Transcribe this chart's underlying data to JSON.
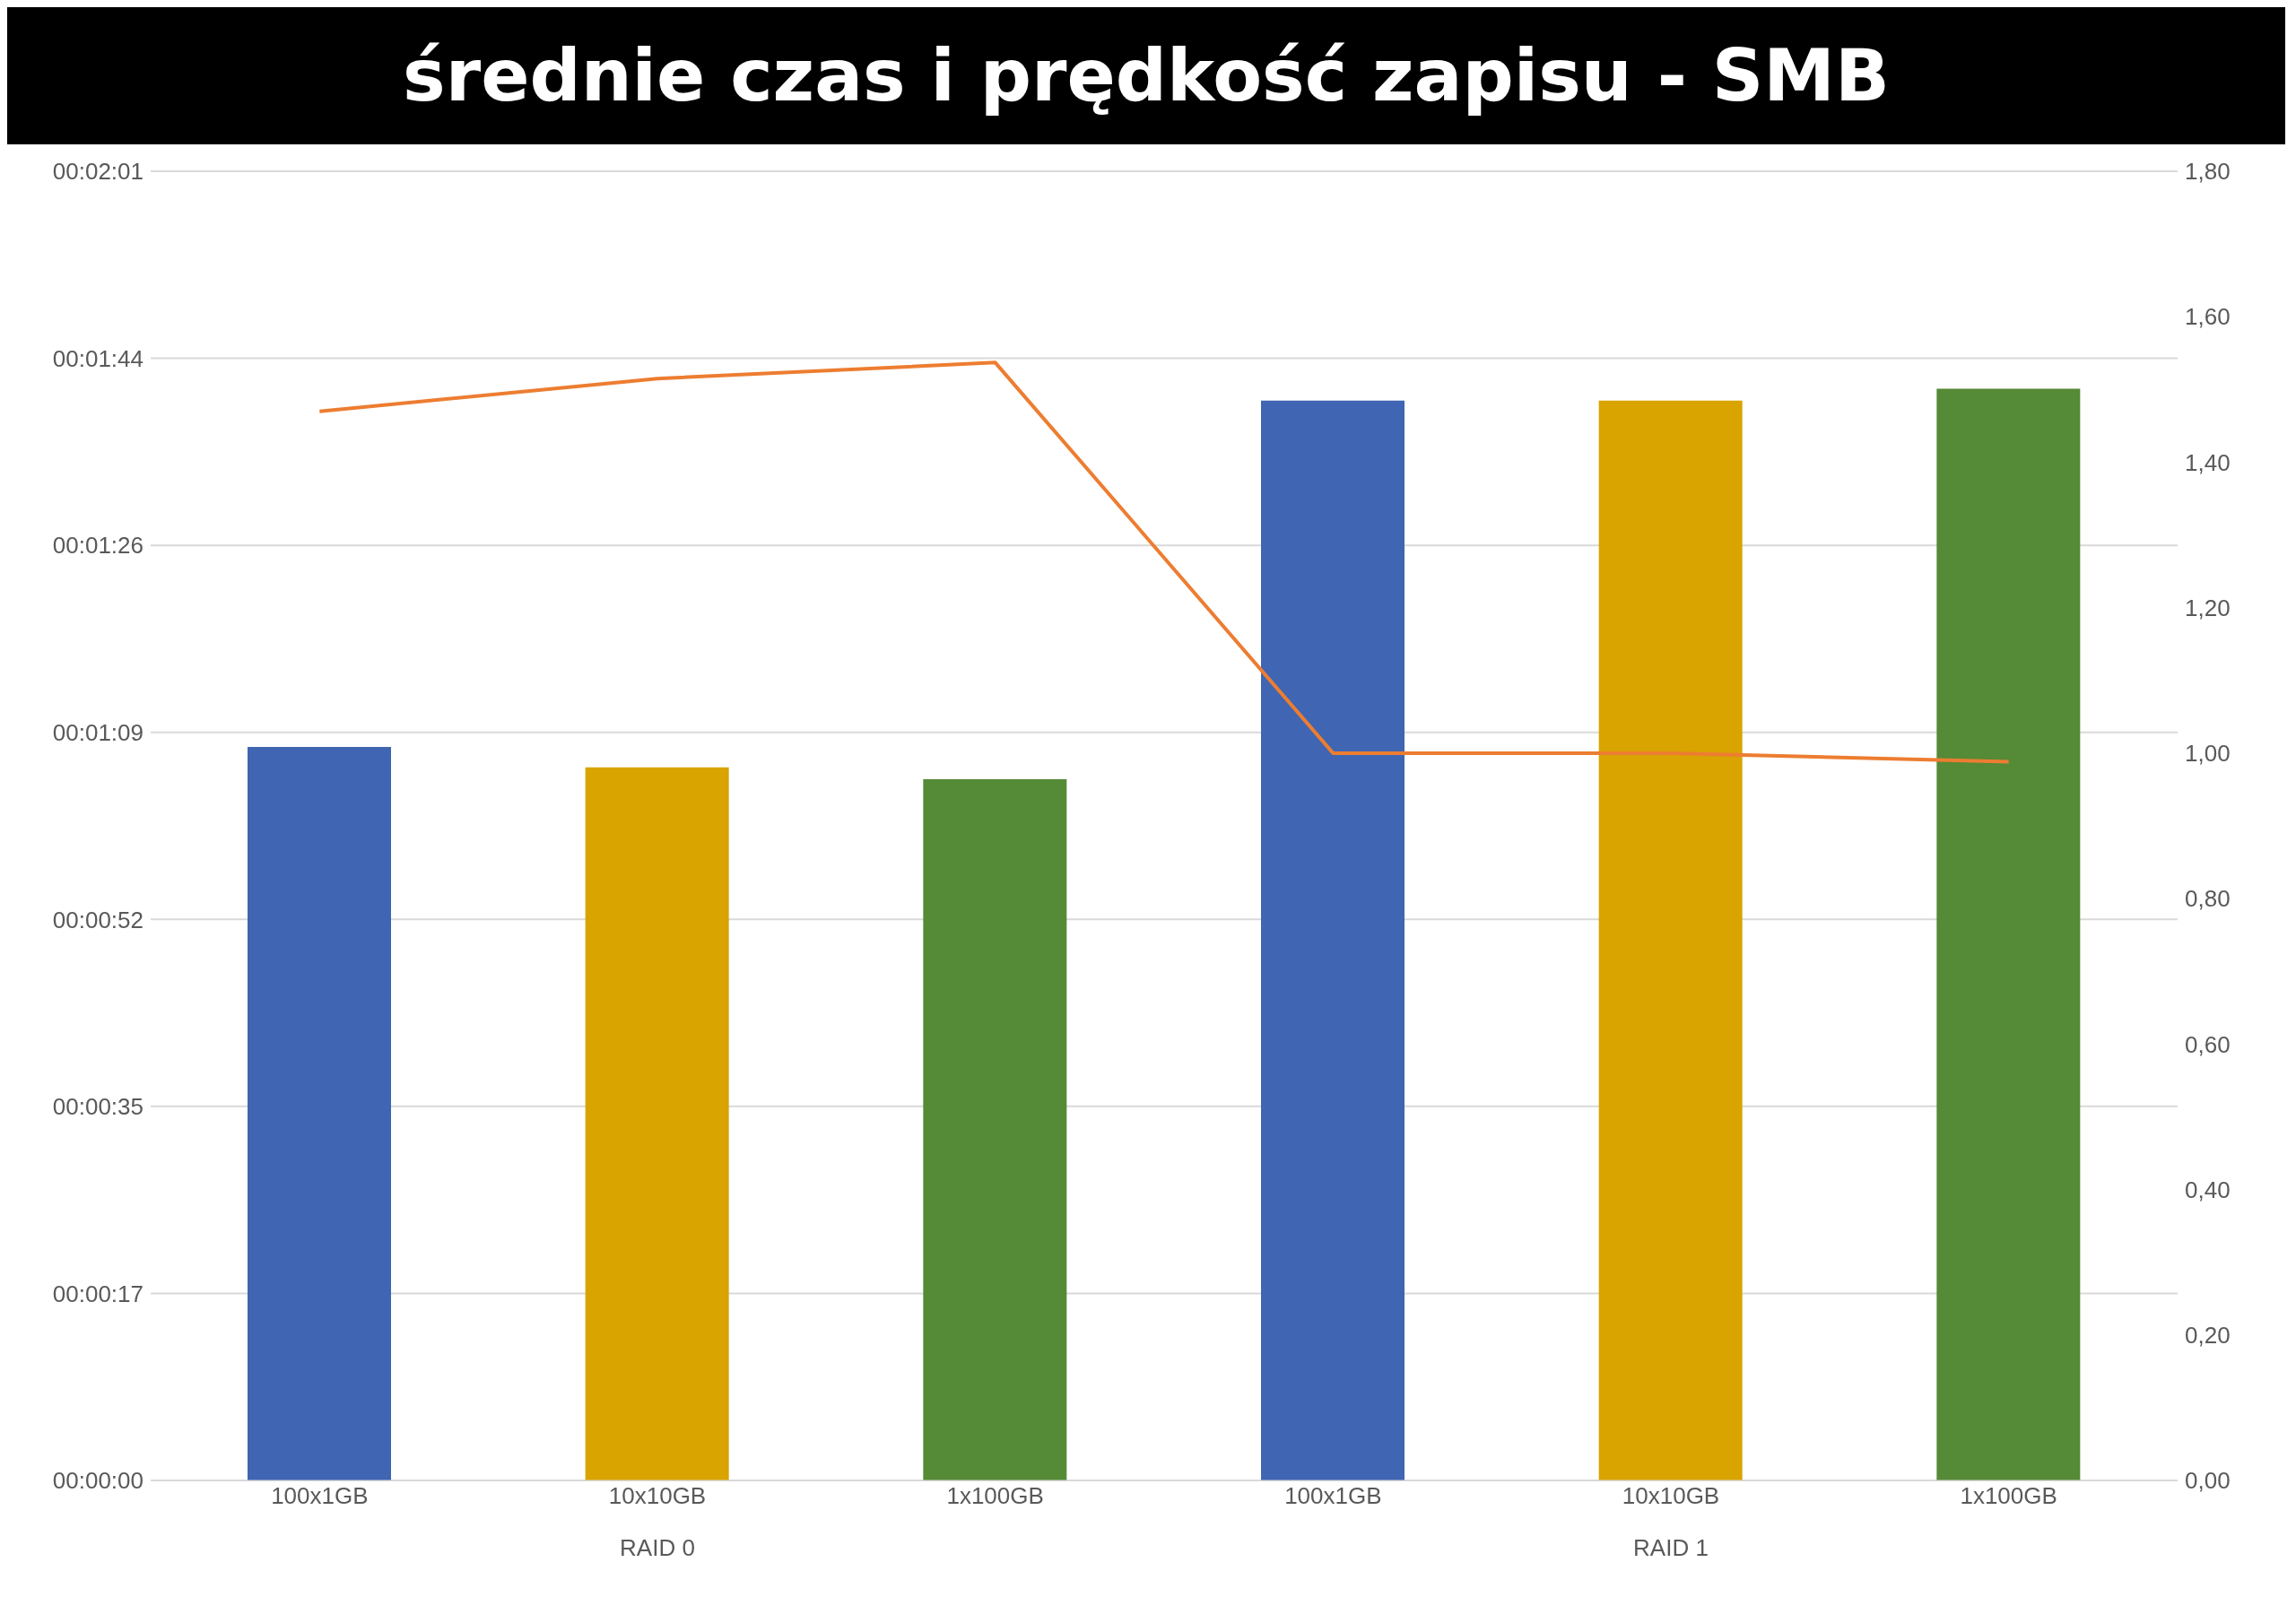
{
  "chart_data": {
    "type": "bar",
    "title": "średnie czas i prędkość zapisu - SMB",
    "categories": [
      "100x1GB",
      "10x10GB",
      "1x100GB",
      "100x1GB",
      "10x10GB",
      "1x100GB"
    ],
    "series": [
      {
        "values": [
          67.8,
          65.9,
          64.8,
          99.8,
          99.8,
          100.9
        ],
        "colors": [
          "#3f65b3",
          "#d9a300",
          "#558a36",
          "#3f65b3",
          "#d9a300",
          "#558a36"
        ]
      },
      {
        "type": "line",
        "axis": "y2",
        "color": "#ed7d31",
        "values": [
          1.47,
          1.515,
          1.537,
          1.0,
          1.0,
          0.988
        ]
      }
    ],
    "ylim": [
      0,
      121
    ],
    "yticks": [
      {
        "value": 0,
        "label": "00:00:00"
      },
      {
        "value": 17.2857,
        "label": "00:00:17"
      },
      {
        "value": 34.5714,
        "label": "00:00:35"
      },
      {
        "value": 51.8571,
        "label": "00:00:52"
      },
      {
        "value": 69.1429,
        "label": "00:01:09"
      },
      {
        "value": 86.4286,
        "label": "00:01:26"
      },
      {
        "value": 103.7143,
        "label": "00:01:44"
      },
      {
        "value": 121,
        "label": "00:02:01"
      }
    ],
    "y2lim": [
      0,
      1.8
    ],
    "y2ticks": [
      {
        "value": 0,
        "label": "0,00"
      },
      {
        "value": 0.2,
        "label": "0,20"
      },
      {
        "value": 0.4,
        "label": "0,40"
      },
      {
        "value": 0.6,
        "label": "0,60"
      },
      {
        "value": 0.8,
        "label": "0,80"
      },
      {
        "value": 1.0,
        "label": "1,00"
      },
      {
        "value": 1.2,
        "label": "1,20"
      },
      {
        "value": 1.4,
        "label": "1,40"
      },
      {
        "value": 1.6,
        "label": "1,60"
      },
      {
        "value": 1.8,
        "label": "1,80"
      }
    ],
    "annotations": [
      "RAID 0",
      "RAID 1"
    ],
    "grid": "y",
    "legend": false,
    "marker": "none",
    "line_style": "solid"
  }
}
